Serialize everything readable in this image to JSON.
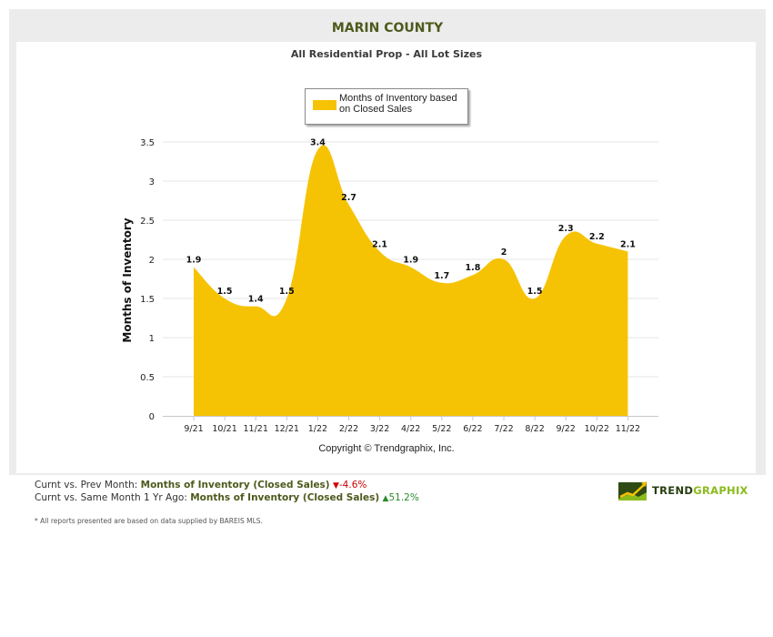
{
  "header": {
    "title": "MARIN COUNTY",
    "subtitle": "All Residential Prop - All Lot Sizes"
  },
  "legend": {
    "label": "Months of Inventory based on Closed Sales"
  },
  "copyright": "Copyright © Trendgraphix, Inc.",
  "chart_data": {
    "type": "area",
    "title": "All Residential Prop - All Lot Sizes",
    "xlabel": "",
    "ylabel": "Months of Inventory",
    "categories": [
      "9/21",
      "10/21",
      "11/21",
      "12/21",
      "1/22",
      "2/22",
      "3/22",
      "4/22",
      "5/22",
      "6/22",
      "7/22",
      "8/22",
      "9/22",
      "10/22",
      "11/22"
    ],
    "series": [
      {
        "name": "Months of Inventory based on Closed Sales",
        "values": [
          1.9,
          1.5,
          1.4,
          1.5,
          3.4,
          2.7,
          2.1,
          1.9,
          1.7,
          1.8,
          2.0,
          1.5,
          2.3,
          2.2,
          2.1
        ],
        "labels": [
          "1.9",
          "1.5",
          "1.4",
          "1.5",
          "3.4",
          "2.7",
          "2.1",
          "1.9",
          "1.7",
          "1.8",
          "2",
          "1.5",
          "2.3",
          "2.2",
          "2.1"
        ]
      }
    ],
    "ylim": [
      0,
      3.5
    ],
    "yticks": [
      "0",
      "0.5",
      "1",
      "1.5",
      "2",
      "2.5",
      "3",
      "3.5"
    ],
    "grid": true,
    "legend_position": "top-center",
    "colors": {
      "fill": "#f6c304"
    }
  },
  "summary": {
    "line1_prefix": "Curnt vs. Prev Month:",
    "line1_metric": "Months of Inventory (Closed Sales)",
    "line1_arrow": "▼",
    "line1_change": "-4.6%",
    "line2_prefix": "Curnt vs. Same Month 1 Yr Ago:",
    "line2_metric": "Months of Inventory (Closed Sales)",
    "line2_arrow": "▲",
    "line2_change": "51.2%"
  },
  "footnote": "* All reports presented are based on data supplied by BAREIS MLS.",
  "logo": {
    "text_main": "TREND",
    "text_accent": "GRAPHIX",
    "colors": {
      "dark": "#2a3d12",
      "accent": "#8bbb1c"
    }
  }
}
